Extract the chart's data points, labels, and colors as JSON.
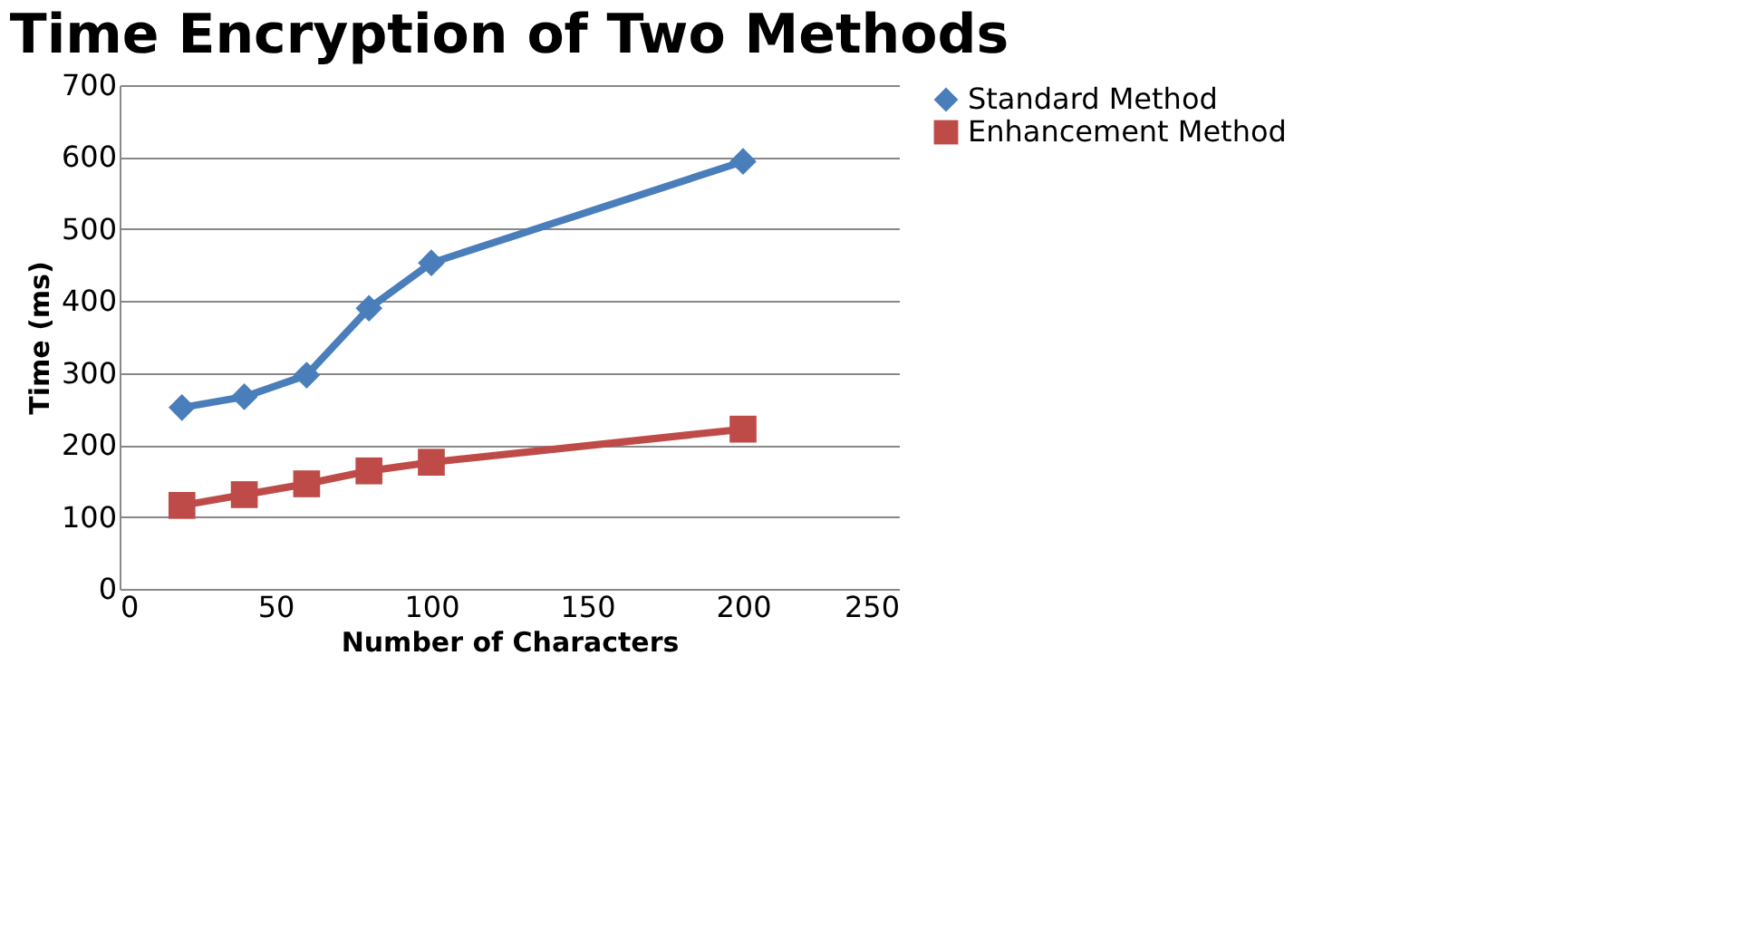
{
  "chart_data": {
    "type": "line",
    "title": "Time Encryption of Two Methods",
    "xlabel": "Number of Characters",
    "ylabel": "Time (ms)",
    "x": [
      20,
      40,
      60,
      80,
      100,
      200
    ],
    "series": [
      {
        "name": "Standard Method",
        "color": "#4a7ebb",
        "marker": "diamond",
        "values": [
          252,
          267,
          297,
          390,
          453,
          594
        ]
      },
      {
        "name": "Enhancement Method",
        "color": "#be4b48",
        "marker": "square",
        "values": [
          116,
          131,
          146,
          164,
          176,
          222
        ]
      }
    ],
    "xlim": [
      0,
      250
    ],
    "xticks": [
      0,
      50,
      100,
      150,
      200,
      250
    ],
    "ylim": [
      0,
      700
    ],
    "yticks": [
      0,
      100,
      200,
      300,
      400,
      500,
      600,
      700
    ],
    "grid": "y",
    "legend": "right",
    "line_style": "solid"
  }
}
